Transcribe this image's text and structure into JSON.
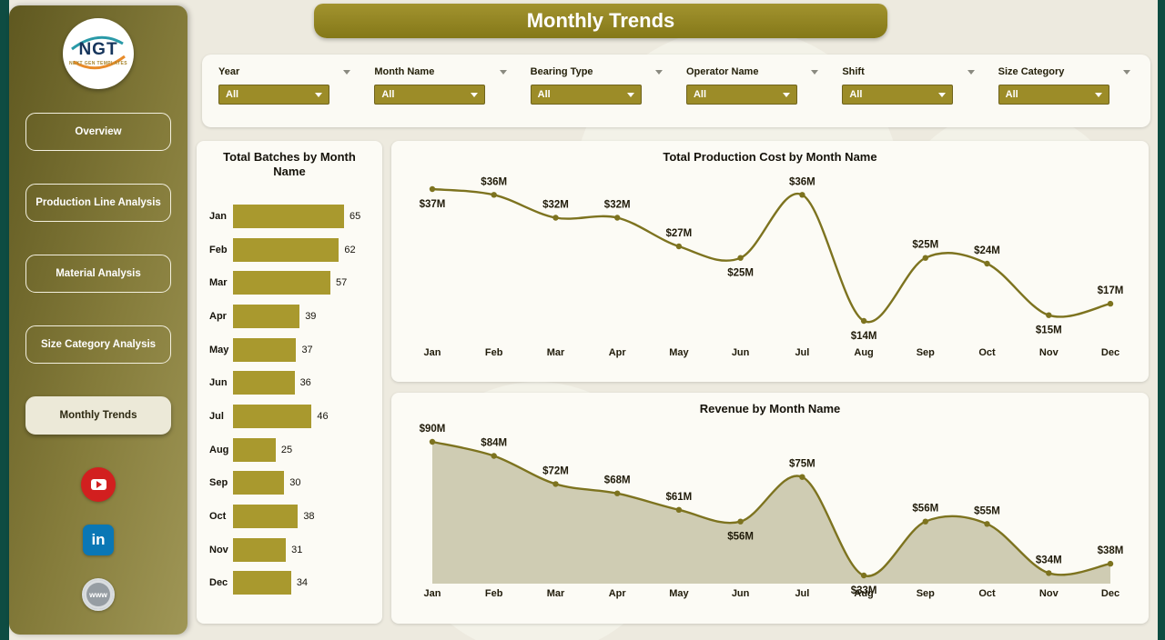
{
  "page_title": "Monthly Trends",
  "theme": {
    "accent": "#9c8c28",
    "bar": "#a9992e",
    "line": "#7d731f",
    "area_fill": "rgba(154,146,100,0.45)",
    "banner": "#8d7f23",
    "edge": "#0e4c42",
    "youtube_red": "#d21f1f",
    "linkedin_blue": "#0a77b5"
  },
  "sidebar": {
    "logo_text": "NGT",
    "logo_subtext": "NEXT GEN TEMPLATES",
    "items": [
      {
        "label": "Overview",
        "active": false
      },
      {
        "label": "Production Line Analysis",
        "active": false
      },
      {
        "label": "Material Analysis",
        "active": false
      },
      {
        "label": "Size Category Analysis",
        "active": false
      },
      {
        "label": "Monthly Trends",
        "active": true
      }
    ],
    "social": [
      {
        "name": "youtube",
        "label": ""
      },
      {
        "name": "linkedin",
        "label": "in"
      },
      {
        "name": "website",
        "label": "www"
      }
    ]
  },
  "filters": [
    {
      "label": "Year",
      "value": "All"
    },
    {
      "label": "Month Name",
      "value": "All"
    },
    {
      "label": "Bearing Type",
      "value": "All"
    },
    {
      "label": "Operator Name",
      "value": "All"
    },
    {
      "label": "Shift",
      "value": "All"
    },
    {
      "label": "Size Category",
      "value": "All"
    }
  ],
  "chart_data": [
    {
      "type": "bar",
      "orientation": "horizontal",
      "title": "Total Batches by Month Name",
      "categories": [
        "Jan",
        "Feb",
        "Mar",
        "Apr",
        "May",
        "Jun",
        "Jul",
        "Aug",
        "Sep",
        "Oct",
        "Nov",
        "Dec"
      ],
      "values": [
        65,
        62,
        57,
        39,
        37,
        36,
        46,
        25,
        30,
        38,
        31,
        34
      ],
      "xlim": [
        0,
        65
      ]
    },
    {
      "type": "line",
      "title": "Total Production Cost by Month Name",
      "categories": [
        "Jan",
        "Feb",
        "Mar",
        "Apr",
        "May",
        "Jun",
        "Jul",
        "Aug",
        "Sep",
        "Oct",
        "Nov",
        "Dec"
      ],
      "values": [
        37,
        36,
        32,
        32,
        27,
        25,
        36,
        14,
        25,
        24,
        15,
        17
      ],
      "labels": [
        "$37M",
        "$36M",
        "$32M",
        "$32M",
        "$27M",
        "$25M",
        "$36M",
        "$14M",
        "$25M",
        "$24M",
        "$15M",
        "$17M"
      ],
      "label_pos": [
        "below",
        "above",
        "above",
        "above",
        "above",
        "below",
        "above",
        "below",
        "above",
        "above",
        "below",
        "above"
      ],
      "ylim": [
        14,
        37
      ],
      "legend": "none",
      "grid": false
    },
    {
      "type": "area",
      "title": "Revenue by Month Name",
      "categories": [
        "Jan",
        "Feb",
        "Mar",
        "Apr",
        "May",
        "Jun",
        "Jul",
        "Aug",
        "Sep",
        "Oct",
        "Nov",
        "Dec"
      ],
      "values": [
        90,
        84,
        72,
        68,
        61,
        56,
        75,
        33,
        56,
        55,
        34,
        38
      ],
      "labels": [
        "$90M",
        "$84M",
        "$72M",
        "$68M",
        "$61M",
        "$56M",
        "$75M",
        "$33M",
        "$56M",
        "$55M",
        "$34M",
        "$38M"
      ],
      "label_pos": [
        "above",
        "above",
        "above",
        "above",
        "above",
        "below",
        "above",
        "below",
        "above",
        "above",
        "above",
        "above"
      ],
      "ylim": [
        33,
        90
      ],
      "legend": "none",
      "grid": false
    }
  ]
}
